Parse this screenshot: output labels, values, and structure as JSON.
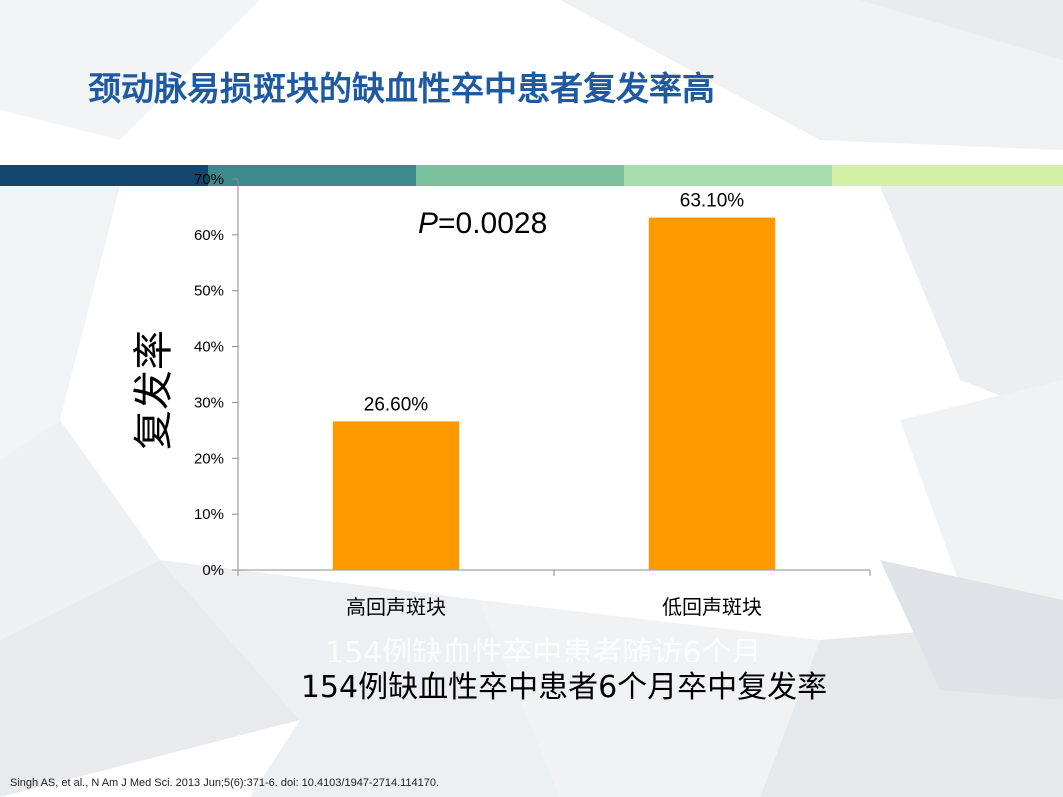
{
  "slide": {
    "title": "颈动脉易损斑块的缺血性卒中患者复发率高",
    "subtitle": "154例缺血性卒中患者6个月卒中复发率",
    "ghost_text": "154例缺血性卒中患者随访6个月",
    "citation": "Singh AS, et al., N Am J Med Sci. 2013 Jun;5(6):371-6. doi: 10.4103/1947-2714.114170.",
    "stripe_colors": [
      "#13466e",
      "#3c8a8c",
      "#7cc19d",
      "#a9dcad",
      "#d3f0a4"
    ]
  },
  "chart_data": {
    "type": "bar",
    "categories": [
      "高回声斑块",
      "低回声斑块"
    ],
    "values": [
      26.6,
      63.1
    ],
    "value_labels": [
      "26.60%",
      "63.10%"
    ],
    "ylabel": "复发率",
    "ylim": [
      0,
      70
    ],
    "yticks": [
      0,
      10,
      20,
      30,
      40,
      50,
      60,
      70
    ],
    "ytick_labels": [
      "0%",
      "10%",
      "20%",
      "30%",
      "40%",
      "50%",
      "60%",
      "70%"
    ],
    "annotation": {
      "italic": "P",
      "rest": "=0.0028"
    },
    "bar_color": "#ff9900",
    "grid": false
  }
}
